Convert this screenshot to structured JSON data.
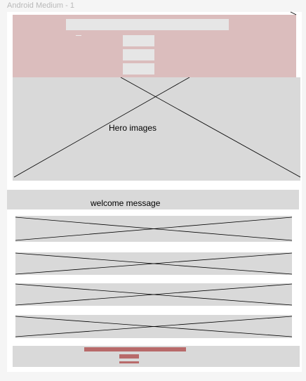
{
  "frame": {
    "title": "Android Medium - 1"
  },
  "hero": {
    "label": "Hero images"
  },
  "welcome": {
    "label": "welcome message"
  },
  "colors": {
    "nav_background": "#dbbdbd",
    "placeholder": "#d9d9d9",
    "field": "#e6e6e6",
    "footer_accent": "#b86a6a"
  }
}
